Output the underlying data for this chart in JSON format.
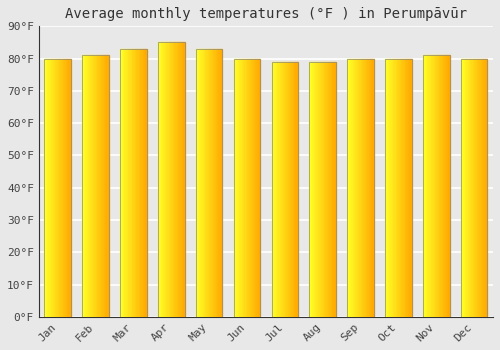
{
  "title": "Average monthly temperatures (°F ) in Perumpāvūr",
  "months": [
    "Jan",
    "Feb",
    "Mar",
    "Apr",
    "May",
    "Jun",
    "Jul",
    "Aug",
    "Sep",
    "Oct",
    "Nov",
    "Dec"
  ],
  "values": [
    80,
    81,
    83,
    85,
    83,
    80,
    79,
    79,
    80,
    80,
    81,
    80
  ],
  "bar_color_main": "#FFA500",
  "bar_color_light": "#FFD050",
  "bar_color_dark": "#CC7700",
  "bar_edge_color": "#888888",
  "ylim": [
    0,
    90
  ],
  "yticks": [
    0,
    10,
    20,
    30,
    40,
    50,
    60,
    70,
    80,
    90
  ],
  "ytick_labels": [
    "0°F",
    "10°F",
    "20°F",
    "30°F",
    "40°F",
    "50°F",
    "60°F",
    "70°F",
    "80°F",
    "90°F"
  ],
  "background_color": "#e8e8e8",
  "plot_bg_color": "#e8e8e8",
  "grid_color": "#ffffff",
  "title_fontsize": 10,
  "tick_fontsize": 8,
  "bar_width": 0.7
}
